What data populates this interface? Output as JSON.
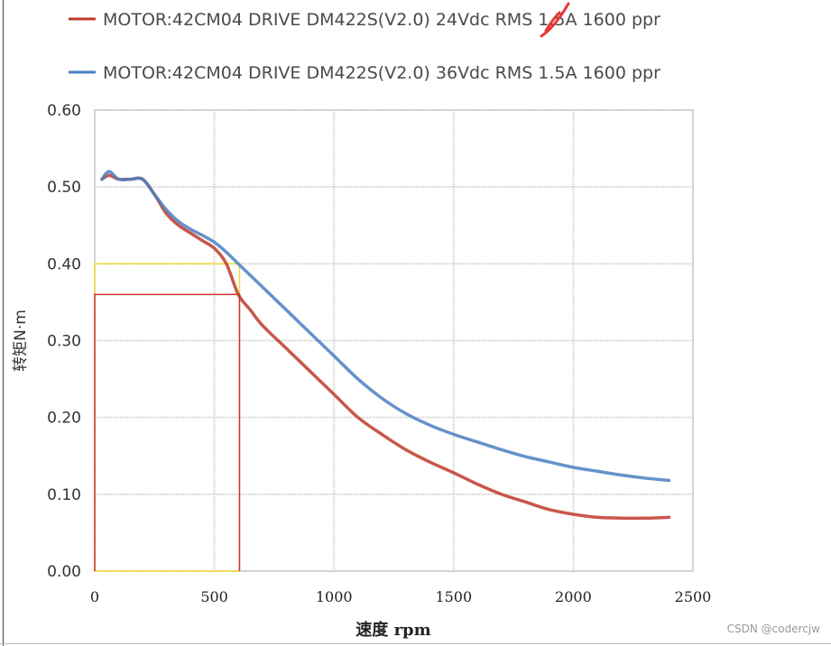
{
  "chart_data": {
    "type": "line",
    "title": "",
    "xlabel": "速度 rpm",
    "ylabel": "转矩N·m",
    "xlim": [
      0,
      2500
    ],
    "ylim": [
      0,
      0.6
    ],
    "xticks": [
      "0",
      "500",
      "1000",
      "1500",
      "2000",
      "2500"
    ],
    "yticks": [
      "0.00",
      "0.10",
      "0.20",
      "0.30",
      "0.40",
      "0.50",
      "0.60"
    ],
    "grid": true,
    "legend_position": "top",
    "series": [
      {
        "name": "MOTOR:42CM04 DRIVE DM422S(V2.0)  24Vdc RMS 1.5A 1600 ppr",
        "color": "#c0392b",
        "x": [
          30,
          60,
          100,
          150,
          200,
          250,
          300,
          350,
          400,
          450,
          500,
          550,
          600,
          650,
          700,
          800,
          900,
          1000,
          1100,
          1200,
          1300,
          1400,
          1500,
          1600,
          1700,
          1800,
          1900,
          2000,
          2100,
          2200,
          2300,
          2400
        ],
        "y": [
          0.51,
          0.515,
          0.51,
          0.51,
          0.51,
          0.49,
          0.465,
          0.45,
          0.44,
          0.43,
          0.42,
          0.4,
          0.36,
          0.34,
          0.32,
          0.29,
          0.26,
          0.23,
          0.2,
          0.178,
          0.158,
          0.142,
          0.128,
          0.113,
          0.1,
          0.09,
          0.08,
          0.074,
          0.07,
          0.069,
          0.069,
          0.07
        ]
      },
      {
        "name": "MOTOR:42CM04 DRIVE DM422S(V2.0)  36Vdc RMS 1.5A 1600 ppr",
        "color": "#4a7fc1",
        "x": [
          30,
          60,
          100,
          150,
          200,
          250,
          300,
          350,
          400,
          450,
          500,
          550,
          600,
          650,
          700,
          800,
          900,
          1000,
          1100,
          1200,
          1300,
          1400,
          1500,
          1600,
          1700,
          1800,
          1900,
          2000,
          2100,
          2200,
          2300,
          2400
        ],
        "y": [
          0.51,
          0.52,
          0.51,
          0.51,
          0.51,
          0.49,
          0.47,
          0.455,
          0.445,
          0.437,
          0.428,
          0.415,
          0.4,
          0.385,
          0.37,
          0.34,
          0.31,
          0.28,
          0.25,
          0.225,
          0.205,
          0.19,
          0.178,
          0.168,
          0.158,
          0.149,
          0.142,
          0.135,
          0.13,
          0.125,
          0.121,
          0.118
        ]
      }
    ],
    "annotations": {
      "yellow_box": {
        "x0": 0,
        "x1": 605,
        "y0": 0,
        "y1": 0.4,
        "color": "#f0dc3c"
      },
      "red_box": {
        "x0": 0,
        "x1": 605,
        "y0": 0,
        "y1": 0.36,
        "color": "#d03030"
      }
    }
  },
  "watermark": "CSDN @codercjw"
}
